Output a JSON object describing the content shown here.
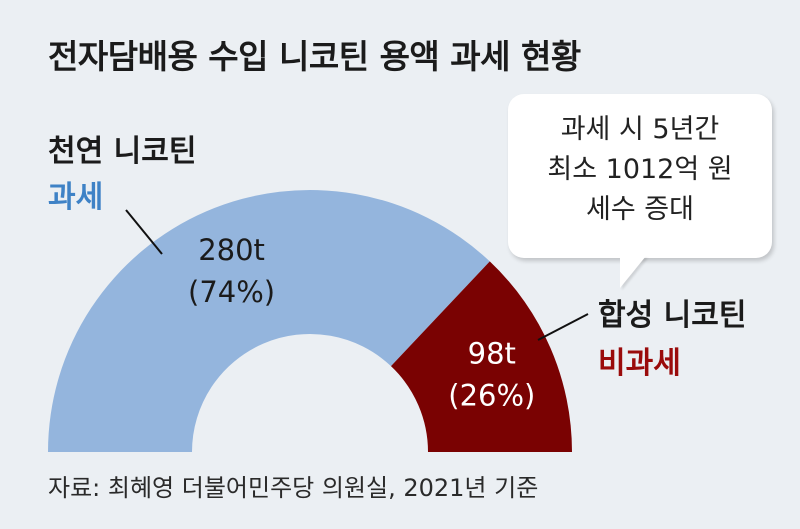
{
  "title": "전자담배용 수입 니코틴 용액 과세 현황",
  "callout": {
    "lines": [
      "과세 시 5년간",
      "최소 1012억 원",
      "세수 증대"
    ]
  },
  "source": "자료: 최혜영 더불어민주당 의원실, 2021년 기준",
  "chart_data": {
    "type": "pie",
    "subtype": "half-donut",
    "title": "전자담배용 수입 니코틴 용액 과세 현황",
    "slices": [
      {
        "name": "천연 니코틴",
        "status": "과세",
        "value": 280,
        "unit": "t",
        "value_label": "280t",
        "percent_label": "(74%)",
        "color": "#94b5dd"
      },
      {
        "name": "합성 니코틴",
        "status": "비과세",
        "value": 98,
        "unit": "t",
        "value_label": "98t",
        "percent_label": "(26%)",
        "color": "#7a0202"
      }
    ],
    "status_colors": {
      "taxed": "#3e82c6",
      "untaxed": "#9a0b0b"
    }
  }
}
